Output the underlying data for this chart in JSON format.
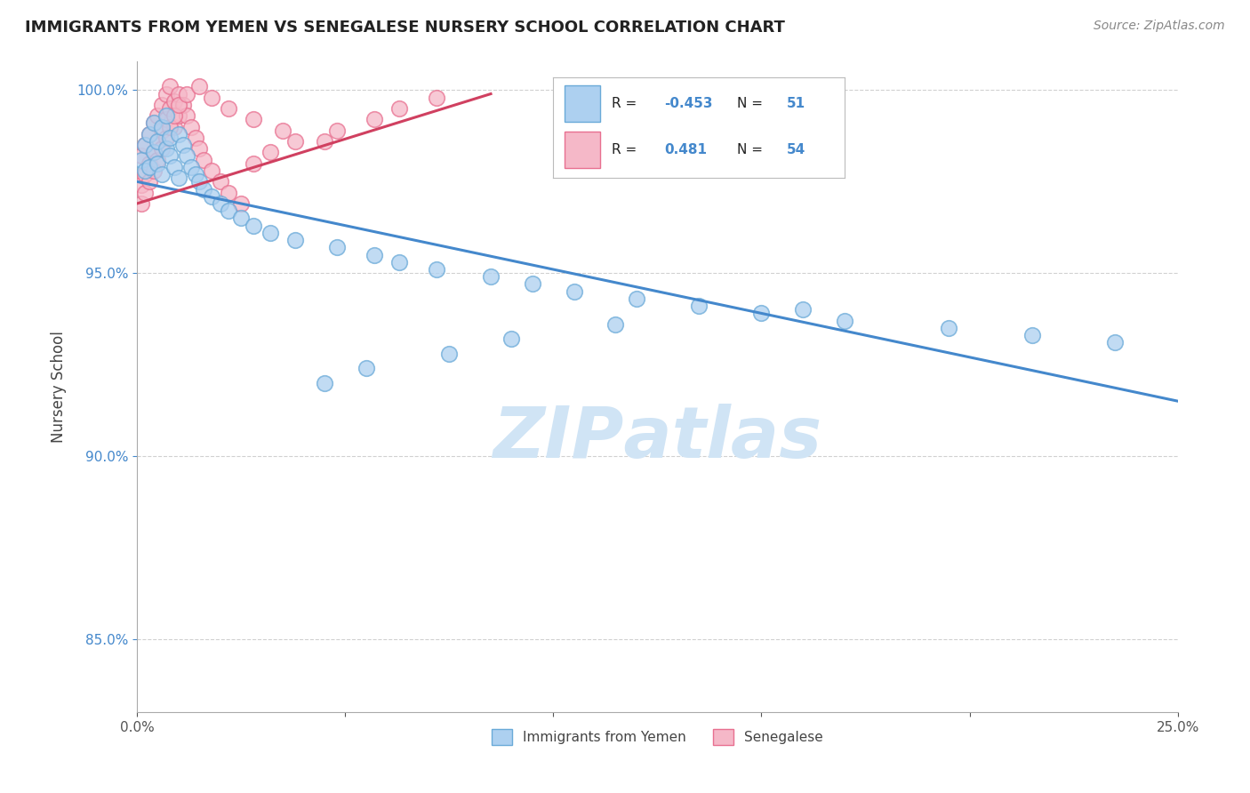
{
  "title": "IMMIGRANTS FROM YEMEN VS SENEGALESE NURSERY SCHOOL CORRELATION CHART",
  "source": "Source: ZipAtlas.com",
  "xlabel_blue": "Immigrants from Yemen",
  "xlabel_pink": "Senegalese",
  "ylabel": "Nursery School",
  "xlim": [
    0.0,
    0.25
  ],
  "ylim": [
    0.83,
    1.008
  ],
  "ytick_positions": [
    0.85,
    0.9,
    0.95,
    1.0
  ],
  "ytick_labels": [
    "85.0%",
    "90.0%",
    "95.0%",
    "100.0%"
  ],
  "legend_blue_R": "-0.453",
  "legend_blue_N": "51",
  "legend_pink_R": "0.481",
  "legend_pink_N": "54",
  "blue_color": "#ADD0F0",
  "pink_color": "#F5B8C8",
  "blue_edge_color": "#6AAAD8",
  "pink_edge_color": "#E87090",
  "blue_line_color": "#4488CC",
  "pink_line_color": "#D04060",
  "watermark_color": "#D0E4F5",
  "background_color": "#FFFFFF",
  "tick_color": "#4488CC",
  "blue_trend_x0": 0.0,
  "blue_trend_y0": 0.975,
  "blue_trend_x1": 0.25,
  "blue_trend_y1": 0.915,
  "pink_trend_x0": 0.0,
  "pink_trend_y0": 0.969,
  "pink_trend_x1": 0.085,
  "pink_trend_y1": 0.999,
  "blue_x": [
    0.001,
    0.002,
    0.002,
    0.003,
    0.003,
    0.004,
    0.004,
    0.005,
    0.005,
    0.006,
    0.006,
    0.007,
    0.007,
    0.008,
    0.008,
    0.009,
    0.01,
    0.01,
    0.011,
    0.012,
    0.013,
    0.014,
    0.015,
    0.016,
    0.018,
    0.02,
    0.022,
    0.025,
    0.028,
    0.032,
    0.038,
    0.048,
    0.057,
    0.063,
    0.072,
    0.085,
    0.095,
    0.105,
    0.12,
    0.135,
    0.15,
    0.17,
    0.195,
    0.215,
    0.235,
    0.045,
    0.055,
    0.075,
    0.09,
    0.115,
    0.16
  ],
  "blue_y": [
    0.981,
    0.978,
    0.985,
    0.979,
    0.988,
    0.983,
    0.991,
    0.98,
    0.986,
    0.977,
    0.99,
    0.984,
    0.993,
    0.982,
    0.987,
    0.979,
    0.976,
    0.988,
    0.985,
    0.982,
    0.979,
    0.977,
    0.975,
    0.973,
    0.971,
    0.969,
    0.967,
    0.965,
    0.963,
    0.961,
    0.959,
    0.957,
    0.955,
    0.953,
    0.951,
    0.949,
    0.947,
    0.945,
    0.943,
    0.941,
    0.939,
    0.937,
    0.935,
    0.933,
    0.931,
    0.92,
    0.924,
    0.928,
    0.932,
    0.936,
    0.94
  ],
  "pink_x": [
    0.001,
    0.001,
    0.002,
    0.002,
    0.003,
    0.003,
    0.004,
    0.004,
    0.005,
    0.005,
    0.006,
    0.006,
    0.007,
    0.007,
    0.008,
    0.008,
    0.009,
    0.009,
    0.01,
    0.01,
    0.011,
    0.012,
    0.013,
    0.014,
    0.015,
    0.016,
    0.018,
    0.02,
    0.022,
    0.025,
    0.028,
    0.032,
    0.038,
    0.048,
    0.057,
    0.063,
    0.072,
    0.001,
    0.002,
    0.003,
    0.004,
    0.005,
    0.006,
    0.007,
    0.008,
    0.009,
    0.01,
    0.012,
    0.015,
    0.018,
    0.022,
    0.028,
    0.035,
    0.045
  ],
  "pink_y": [
    0.974,
    0.982,
    0.977,
    0.985,
    0.98,
    0.988,
    0.983,
    0.991,
    0.986,
    0.993,
    0.989,
    0.996,
    0.992,
    0.999,
    0.995,
    1.001,
    0.997,
    0.99,
    0.993,
    0.999,
    0.996,
    0.993,
    0.99,
    0.987,
    0.984,
    0.981,
    0.978,
    0.975,
    0.972,
    0.969,
    0.98,
    0.983,
    0.986,
    0.989,
    0.992,
    0.995,
    0.998,
    0.969,
    0.972,
    0.975,
    0.978,
    0.981,
    0.984,
    0.987,
    0.99,
    0.993,
    0.996,
    0.999,
    1.001,
    0.998,
    0.995,
    0.992,
    0.989,
    0.986
  ]
}
